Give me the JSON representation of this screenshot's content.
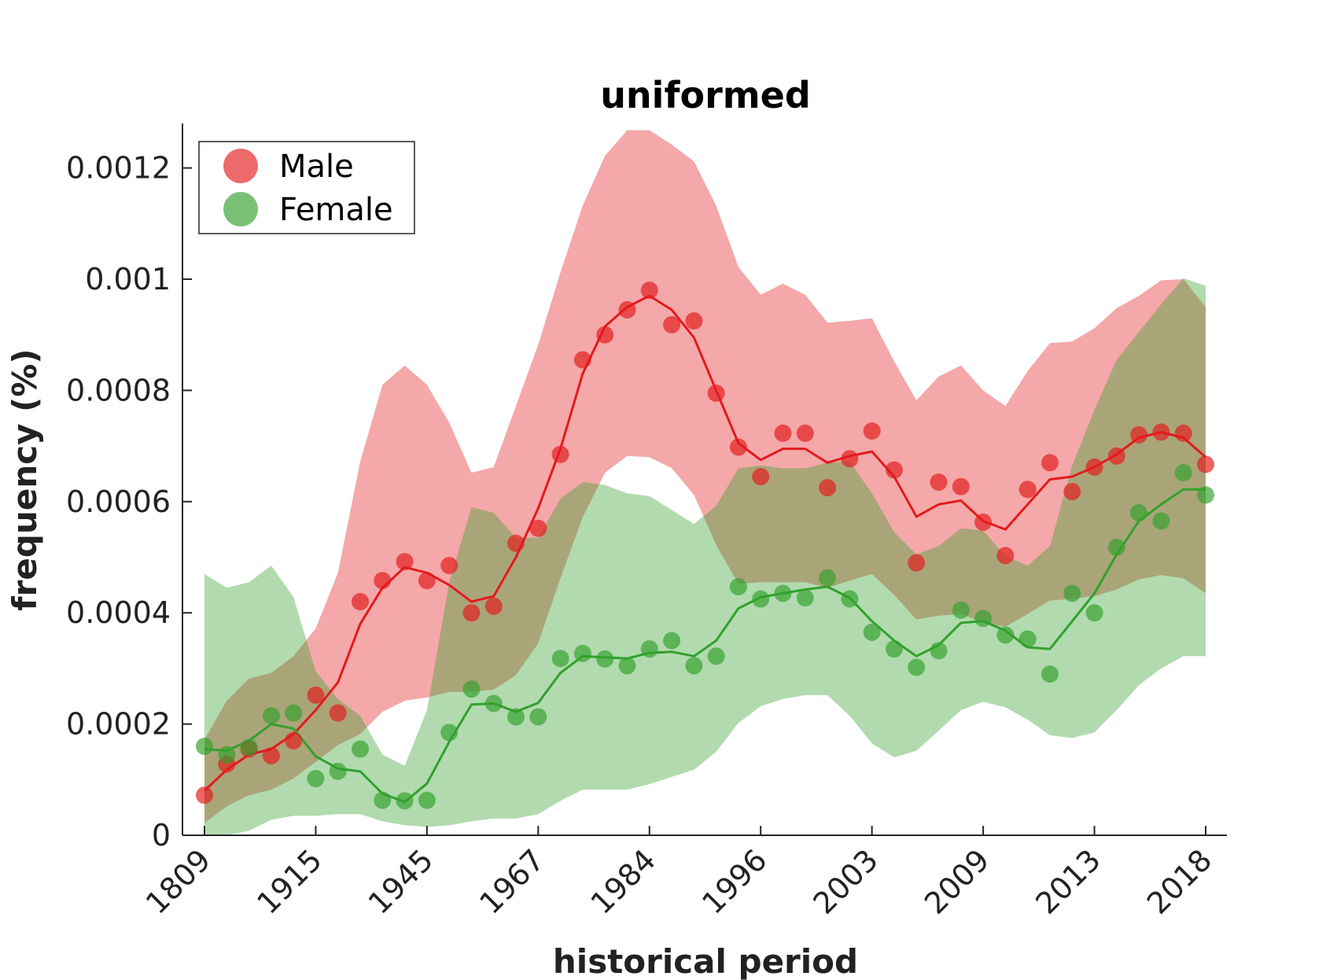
{
  "chart_data": {
    "type": "line",
    "title": "uniformed",
    "xlabel": "historical period",
    "ylabel": "frequency (%)",
    "ylim": [
      0,
      0.00128
    ],
    "y_ticks": [
      0,
      0.0002,
      0.0004,
      0.0006,
      0.0008,
      0.001,
      0.0012
    ],
    "y_tick_labels": [
      "0",
      "0.0002",
      "0.0004",
      "0.0006",
      "0.0008",
      "0.001",
      "0.0012"
    ],
    "x_tick_labels": [
      "1809",
      "1915",
      "1945",
      "1967",
      "1984",
      "1996",
      "2003",
      "2009",
      "2013",
      "2018"
    ],
    "x_tick_positions": [
      1,
      6,
      11,
      16,
      21,
      26,
      31,
      36,
      41,
      46
    ],
    "xlim": [
      0,
      47
    ],
    "legend": {
      "position": "top-left",
      "entries": [
        "Male",
        "Female"
      ]
    },
    "grid": false,
    "series": [
      {
        "name": "Male",
        "color": "#e31a1c",
        "points": [
          7.2e-05,
          0.000128,
          0.000155,
          0.000143,
          0.00017,
          0.000252,
          0.00022,
          0.00042,
          0.000458,
          0.000492,
          0.000458,
          0.000485,
          0.0004,
          0.000412,
          0.000525,
          0.000552,
          0.000685,
          0.000855,
          0.0009,
          0.000945,
          0.00098,
          0.000918,
          0.000925,
          0.000795,
          0.000698,
          0.000645,
          0.000723,
          0.000723,
          0.000625,
          0.000677,
          0.000727,
          0.000657,
          0.00049,
          0.000635,
          0.000627,
          0.000563,
          0.000503,
          0.000622,
          0.00067,
          0.000618,
          0.000662,
          0.000682,
          0.00072,
          0.000725,
          0.000723,
          0.000667
        ],
        "smoothed": [
          8e-05,
          0.000118,
          0.000145,
          0.000155,
          0.000182,
          0.000225,
          0.000275,
          0.00038,
          0.000445,
          0.000482,
          0.000472,
          0.00045,
          0.00042,
          0.00043,
          0.0005,
          0.000588,
          0.000695,
          0.00083,
          0.000915,
          0.00095,
          0.00097,
          0.000945,
          0.000895,
          0.0008,
          0.000705,
          0.000675,
          0.000695,
          0.000695,
          0.00067,
          0.000682,
          0.00069,
          0.000645,
          0.000573,
          0.000595,
          0.000602,
          0.000565,
          0.00055,
          0.000595,
          0.00064,
          0.000645,
          0.000662,
          0.000685,
          0.000715,
          0.000725,
          0.000715,
          0.00068
        ],
        "band_upper": [
          0.000172,
          0.000242,
          0.000282,
          0.000292,
          0.000322,
          0.000372,
          0.000472,
          0.000672,
          0.00081,
          0.000845,
          0.00081,
          0.000742,
          0.000652,
          0.000662,
          0.000772,
          0.000882,
          0.001012,
          0.001132,
          0.001222,
          0.001268,
          0.001268,
          0.001242,
          0.001212,
          0.001132,
          0.001022,
          0.000972,
          0.000992,
          0.000972,
          0.000922,
          0.000925,
          0.00093,
          0.000852,
          0.000782,
          0.000825,
          0.000845,
          0.0008,
          0.000772,
          0.000835,
          0.000885,
          0.000888,
          0.000912,
          0.000948,
          0.00097,
          0.000998,
          0.001,
          0.00095
        ],
        "band_lower": [
          2.2e-05,
          5.2e-05,
          7.2e-05,
          8.2e-05,
          0.000102,
          0.000132,
          0.000162,
          0.000182,
          0.000222,
          0.000242,
          0.000248,
          0.000258,
          0.000258,
          0.000262,
          0.000288,
          0.000345,
          0.000462,
          0.000572,
          0.000652,
          0.000682,
          0.00068,
          0.00066,
          0.000612,
          0.000522,
          0.000452,
          0.000455,
          0.000455,
          0.000455,
          0.000445,
          0.000458,
          0.00047,
          0.000432,
          0.000388,
          0.000395,
          0.000398,
          0.000382,
          0.000375,
          0.000398,
          0.000422,
          0.000425,
          0.00043,
          0.000442,
          0.00046,
          0.000468,
          0.000462,
          0.000435
        ]
      },
      {
        "name": "Female",
        "color": "#33a02c",
        "points": [
          0.00016,
          0.000145,
          0.000158,
          0.000215,
          0.00022,
          0.000102,
          0.000115,
          0.000155,
          6.3e-05,
          6.2e-05,
          6.3e-05,
          0.000185,
          0.000263,
          0.000237,
          0.000213,
          0.000213,
          0.000318,
          0.000327,
          0.000317,
          0.000305,
          0.000335,
          0.00035,
          0.000305,
          0.000322,
          0.000447,
          0.000425,
          0.000435,
          0.000427,
          0.000463,
          0.000425,
          0.000365,
          0.000335,
          0.000302,
          0.000332,
          0.000405,
          0.00039,
          0.00036,
          0.000353,
          0.00029,
          0.000435,
          0.0004,
          0.000518,
          0.00058,
          0.000565,
          0.000652,
          0.000612
        ],
        "smoothed": [
          0.000155,
          0.000152,
          0.00017,
          0.0002,
          0.000192,
          0.000142,
          0.00012,
          0.000115,
          7.5e-05,
          6e-05,
          9.3e-05,
          0.000168,
          0.000235,
          0.000237,
          0.000222,
          0.000238,
          0.000292,
          0.000322,
          0.00032,
          0.000318,
          0.000328,
          0.00033,
          0.000322,
          0.00035,
          0.000408,
          0.000428,
          0.000435,
          0.000442,
          0.000447,
          0.000427,
          0.000385,
          0.00035,
          0.000322,
          0.000342,
          0.000382,
          0.000385,
          0.000368,
          0.000338,
          0.000335,
          0.000385,
          0.000435,
          0.000505,
          0.000565,
          0.000595,
          0.000622,
          0.000622
        ],
        "band_upper": [
          0.00047,
          0.000445,
          0.000455,
          0.000485,
          0.000428,
          0.000295,
          0.000245,
          0.000215,
          0.000145,
          0.000125,
          0.000225,
          0.000455,
          0.00059,
          0.00058,
          0.000535,
          0.000535,
          0.000605,
          0.000635,
          0.00063,
          0.000615,
          0.00061,
          0.000585,
          0.00056,
          0.000592,
          0.00066,
          0.000665,
          0.00066,
          0.00066,
          0.00067,
          0.000672,
          0.000615,
          0.000545,
          0.000505,
          0.00052,
          0.000552,
          0.000548,
          0.000502,
          0.000485,
          0.00052,
          0.000665,
          0.000765,
          0.000855,
          0.000905,
          0.000955,
          0.001002,
          0.000988
        ],
        "band_lower": [
          0.0,
          0.0,
          8e-06,
          2.8e-05,
          3.5e-05,
          3.5e-05,
          3.8e-05,
          3.8e-05,
          2.5e-05,
          1.8e-05,
          1.5e-05,
          1.8e-05,
          2.5e-05,
          3e-05,
          3e-05,
          3.8e-05,
          6.2e-05,
          8.2e-05,
          8.2e-05,
          8.2e-05,
          9.2e-05,
          0.000105,
          0.000118,
          0.00015,
          0.000202,
          0.000232,
          0.000245,
          0.000252,
          0.000252,
          0.000215,
          0.000165,
          0.00014,
          0.000152,
          0.000188,
          0.000225,
          0.00024,
          0.00023,
          0.000208,
          0.00018,
          0.000175,
          0.000185,
          0.000225,
          0.00027,
          0.0003,
          0.000322,
          0.000322
        ]
      }
    ]
  }
}
